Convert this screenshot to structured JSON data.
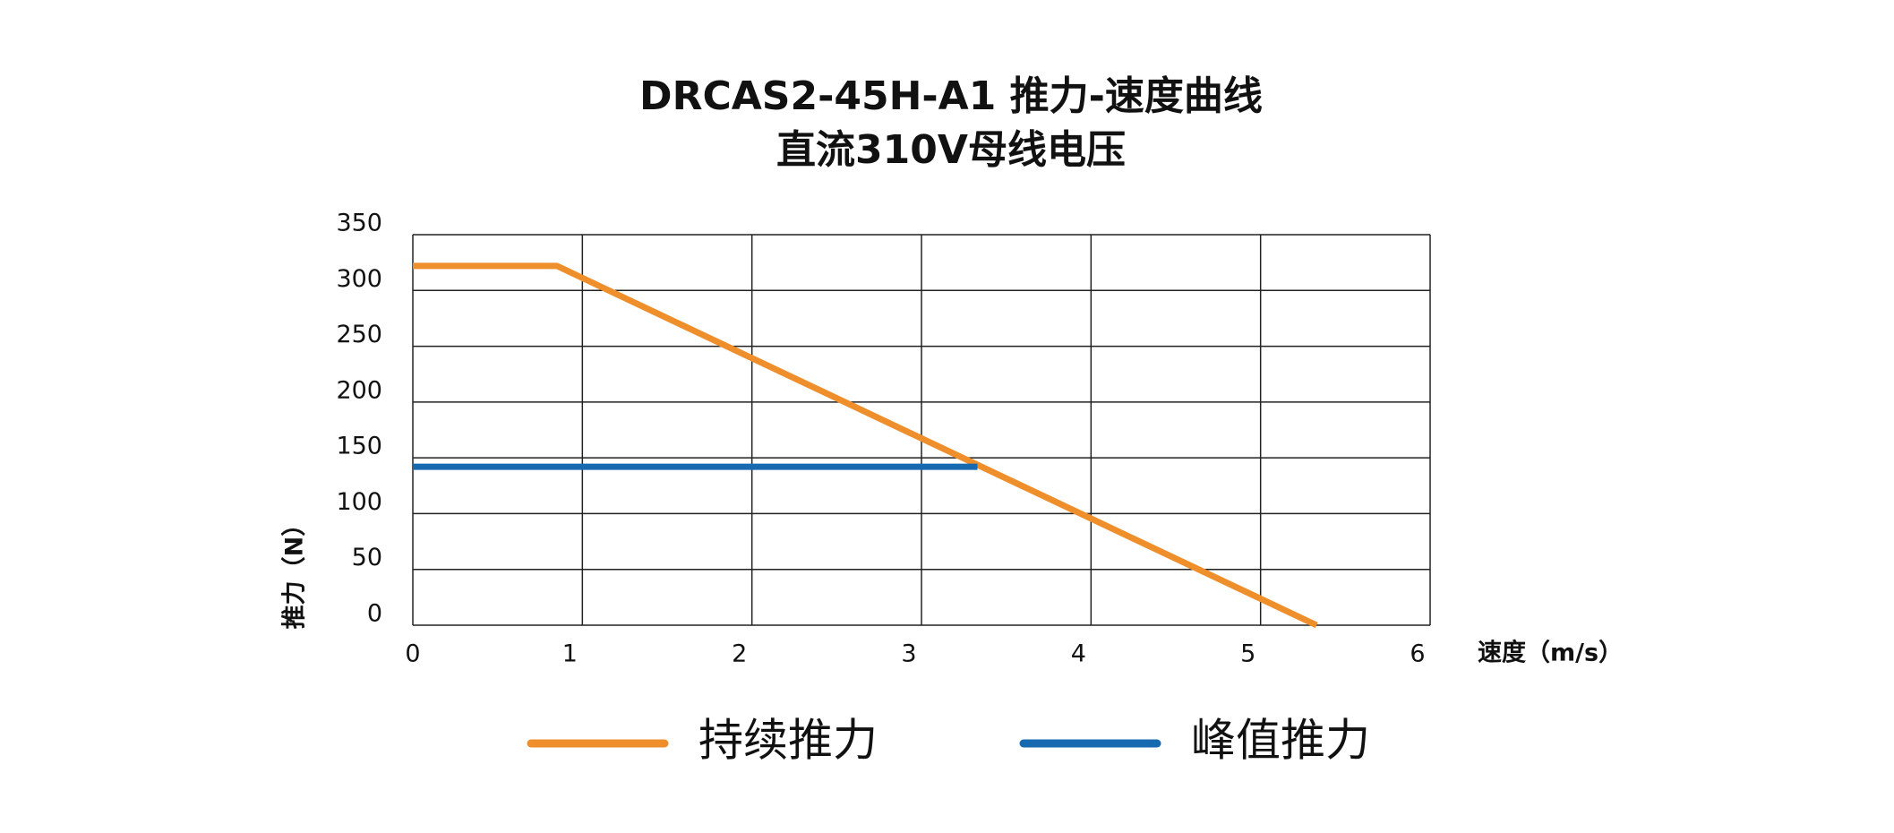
{
  "chart_data": {
    "type": "line",
    "title": [
      "DRCAS2-45H-A1 推力-速度曲线",
      "直流310V母线电压"
    ],
    "xlabel": "速度（m/s）",
    "ylabel": "推力（N）",
    "xlim": [
      0,
      6
    ],
    "xticks": [
      0,
      1,
      2,
      3,
      4,
      5,
      6
    ],
    "ylim": [
      0,
      350
    ],
    "yticks": [
      0,
      50,
      100,
      150,
      200,
      250,
      300,
      350
    ],
    "grid": true,
    "legend": "bottom",
    "series": [
      {
        "name": "持续推力",
        "color": "#ee8f2c",
        "x": [
          0,
          0.85,
          5.33
        ],
        "values": [
          322,
          322,
          0
        ]
      },
      {
        "name": "峰值推力",
        "color": "#1769b0",
        "x": [
          0,
          3.33
        ],
        "values": [
          142,
          142
        ]
      }
    ]
  }
}
